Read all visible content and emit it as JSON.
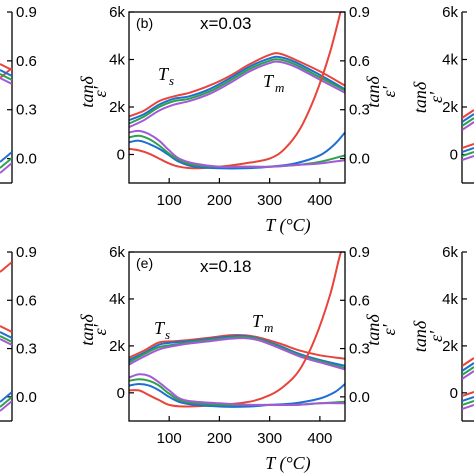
{
  "chart_data": [
    {
      "type": "line",
      "panel_label": "(b)",
      "annotation": "x=0.03",
      "xlabel": "T (°C)",
      "y_left_label": "ε'",
      "y_right_label": "tanδ",
      "xlim": [
        20,
        450
      ],
      "ylim_left": [
        -1200,
        6000
      ],
      "ylim_right": [
        -0.15,
        0.9
      ],
      "xticks": [
        "100",
        "200",
        "300",
        "400"
      ],
      "yticks_left": [
        "0",
        "2k",
        "4k",
        "6k"
      ],
      "yticks_right": [
        "0.0",
        "0.3",
        "0.6",
        "0.9"
      ],
      "feature_labels": [
        {
          "base": "T",
          "sub": "s"
        },
        {
          "base": "T",
          "sub": "m"
        }
      ],
      "colors": [
        "#e8443a",
        "#1f6fd1",
        "#2ca24a",
        "#a35ad6"
      ],
      "permittivity_series": [
        {
          "points": [
            [
              20,
              1600
            ],
            [
              50,
              1850
            ],
            [
              80,
              2250
            ],
            [
              110,
              2450
            ],
            [
              140,
              2600
            ],
            [
              180,
              2900
            ],
            [
              220,
              3300
            ],
            [
              260,
              3800
            ],
            [
              300,
              4200
            ],
            [
              320,
              4250
            ],
            [
              350,
              4000
            ],
            [
              400,
              3500
            ],
            [
              450,
              2900
            ]
          ]
        },
        {
          "points": [
            [
              20,
              1450
            ],
            [
              50,
              1700
            ],
            [
              80,
              2100
            ],
            [
              110,
              2350
            ],
            [
              140,
              2450
            ],
            [
              180,
              2750
            ],
            [
              220,
              3200
            ],
            [
              260,
              3700
            ],
            [
              300,
              4050
            ],
            [
              320,
              4100
            ],
            [
              350,
              3900
            ],
            [
              400,
              3350
            ],
            [
              450,
              2750
            ]
          ]
        },
        {
          "points": [
            [
              20,
              1300
            ],
            [
              50,
              1600
            ],
            [
              80,
              2000
            ],
            [
              110,
              2250
            ],
            [
              140,
              2350
            ],
            [
              180,
              2650
            ],
            [
              220,
              3100
            ],
            [
              260,
              3600
            ],
            [
              300,
              3950
            ],
            [
              320,
              4000
            ],
            [
              350,
              3800
            ],
            [
              400,
              3250
            ],
            [
              450,
              2700
            ]
          ]
        },
        {
          "points": [
            [
              20,
              1150
            ],
            [
              50,
              1450
            ],
            [
              80,
              1850
            ],
            [
              110,
              2100
            ],
            [
              140,
              2250
            ],
            [
              180,
              2550
            ],
            [
              220,
              3000
            ],
            [
              260,
              3500
            ],
            [
              300,
              3850
            ],
            [
              320,
              3900
            ],
            [
              350,
              3700
            ],
            [
              400,
              3150
            ],
            [
              450,
              2600
            ]
          ]
        }
      ],
      "tan_series": [
        {
          "points": [
            [
              20,
              0.06
            ],
            [
              40,
              0.05
            ],
            [
              60,
              0.03
            ],
            [
              80,
              0.0
            ],
            [
              100,
              -0.03
            ],
            [
              120,
              -0.05
            ],
            [
              150,
              -0.06
            ],
            [
              200,
              -0.05
            ],
            [
              250,
              -0.03
            ],
            [
              300,
              0.0
            ],
            [
              330,
              0.06
            ],
            [
              360,
              0.18
            ],
            [
              390,
              0.38
            ],
            [
              420,
              0.65
            ],
            [
              445,
              0.95
            ]
          ]
        },
        {
          "points": [
            [
              20,
              0.1
            ],
            [
              40,
              0.11
            ],
            [
              60,
              0.09
            ],
            [
              80,
              0.06
            ],
            [
              100,
              0.02
            ],
            [
              120,
              -0.02
            ],
            [
              150,
              -0.05
            ],
            [
              200,
              -0.06
            ],
            [
              250,
              -0.06
            ],
            [
              300,
              -0.05
            ],
            [
              350,
              -0.03
            ],
            [
              400,
              0.02
            ],
            [
              430,
              0.09
            ],
            [
              450,
              0.16
            ]
          ]
        },
        {
          "points": [
            [
              20,
              0.13
            ],
            [
              40,
              0.14
            ],
            [
              60,
              0.12
            ],
            [
              80,
              0.08
            ],
            [
              100,
              0.03
            ],
            [
              120,
              -0.01
            ],
            [
              150,
              -0.04
            ],
            [
              200,
              -0.05
            ],
            [
              250,
              -0.05
            ],
            [
              300,
              -0.05
            ],
            [
              350,
              -0.04
            ],
            [
              400,
              -0.02
            ],
            [
              450,
              0.02
            ]
          ]
        },
        {
          "points": [
            [
              20,
              0.16
            ],
            [
              40,
              0.17
            ],
            [
              60,
              0.15
            ],
            [
              80,
              0.11
            ],
            [
              100,
              0.05
            ],
            [
              120,
              0.0
            ],
            [
              150,
              -0.03
            ],
            [
              200,
              -0.05
            ],
            [
              250,
              -0.05
            ],
            [
              300,
              -0.05
            ],
            [
              350,
              -0.04
            ],
            [
              400,
              -0.03
            ],
            [
              450,
              -0.01
            ]
          ]
        }
      ]
    },
    {
      "type": "line",
      "panel_label": "(e)",
      "annotation": "x=0.18",
      "xlabel": "T (°C)",
      "y_left_label": "ε'",
      "y_right_label": "tanδ",
      "xlim": [
        20,
        450
      ],
      "ylim_left": [
        -1200,
        6000
      ],
      "ylim_right": [
        -0.15,
        0.9
      ],
      "xticks": [
        "100",
        "200",
        "300",
        "400"
      ],
      "yticks_left": [
        "0",
        "2k",
        "4k",
        "6k"
      ],
      "yticks_right": [
        "0.0",
        "0.3",
        "0.6",
        "0.9"
      ],
      "feature_labels": [
        {
          "base": "T",
          "sub": "s"
        },
        {
          "base": "T",
          "sub": "m"
        }
      ],
      "colors": [
        "#e8443a",
        "#1f6fd1",
        "#2ca24a",
        "#a35ad6"
      ],
      "permittivity_series": [
        {
          "points": [
            [
              20,
              1500
            ],
            [
              50,
              1800
            ],
            [
              80,
              2150
            ],
            [
              110,
              2200
            ],
            [
              140,
              2250
            ],
            [
              180,
              2350
            ],
            [
              220,
              2450
            ],
            [
              250,
              2450
            ],
            [
              280,
              2350
            ],
            [
              320,
              2100
            ],
            [
              360,
              1800
            ],
            [
              400,
              1600
            ],
            [
              450,
              1450
            ]
          ]
        },
        {
          "points": [
            [
              20,
              1400
            ],
            [
              50,
              1700
            ],
            [
              80,
              2050
            ],
            [
              110,
              2150
            ],
            [
              140,
              2200
            ],
            [
              180,
              2300
            ],
            [
              220,
              2400
            ],
            [
              250,
              2420
            ],
            [
              280,
              2300
            ],
            [
              320,
              2000
            ],
            [
              360,
              1650
            ],
            [
              400,
              1400
            ],
            [
              450,
              1150
            ]
          ]
        },
        {
          "points": [
            [
              20,
              1300
            ],
            [
              50,
              1650
            ],
            [
              80,
              1950
            ],
            [
              110,
              2050
            ],
            [
              140,
              2150
            ],
            [
              180,
              2250
            ],
            [
              220,
              2350
            ],
            [
              250,
              2380
            ],
            [
              280,
              2280
            ],
            [
              320,
              1950
            ],
            [
              360,
              1600
            ],
            [
              400,
              1350
            ],
            [
              450,
              1050
            ]
          ]
        },
        {
          "points": [
            [
              20,
              1200
            ],
            [
              50,
              1550
            ],
            [
              80,
              1850
            ],
            [
              110,
              2000
            ],
            [
              140,
              2100
            ],
            [
              180,
              2200
            ],
            [
              220,
              2300
            ],
            [
              250,
              2330
            ],
            [
              280,
              2230
            ],
            [
              320,
              1900
            ],
            [
              360,
              1550
            ],
            [
              400,
              1300
            ],
            [
              450,
              1000
            ]
          ]
        }
      ],
      "tan_series": [
        {
          "points": [
            [
              20,
              0.04
            ],
            [
              40,
              0.04
            ],
            [
              60,
              0.01
            ],
            [
              80,
              -0.02
            ],
            [
              100,
              -0.05
            ],
            [
              130,
              -0.06
            ],
            [
              200,
              -0.05
            ],
            [
              260,
              -0.03
            ],
            [
              300,
              0.01
            ],
            [
              330,
              0.07
            ],
            [
              360,
              0.17
            ],
            [
              390,
              0.36
            ],
            [
              420,
              0.63
            ],
            [
              440,
              0.88
            ],
            [
              450,
              0.95
            ]
          ]
        },
        {
          "points": [
            [
              20,
              0.07
            ],
            [
              40,
              0.08
            ],
            [
              60,
              0.07
            ],
            [
              80,
              0.04
            ],
            [
              100,
              0.0
            ],
            [
              130,
              -0.04
            ],
            [
              200,
              -0.06
            ],
            [
              260,
              -0.06
            ],
            [
              300,
              -0.05
            ],
            [
              350,
              -0.04
            ],
            [
              400,
              -0.01
            ],
            [
              430,
              0.03
            ],
            [
              450,
              0.08
            ]
          ]
        },
        {
          "points": [
            [
              20,
              0.1
            ],
            [
              40,
              0.11
            ],
            [
              60,
              0.1
            ],
            [
              80,
              0.07
            ],
            [
              100,
              0.02
            ],
            [
              130,
              -0.03
            ],
            [
              200,
              -0.05
            ],
            [
              260,
              -0.05
            ],
            [
              300,
              -0.05
            ],
            [
              350,
              -0.05
            ],
            [
              400,
              -0.04
            ],
            [
              450,
              -0.03
            ]
          ]
        },
        {
          "points": [
            [
              20,
              0.12
            ],
            [
              40,
              0.14
            ],
            [
              60,
              0.13
            ],
            [
              80,
              0.09
            ],
            [
              100,
              0.04
            ],
            [
              130,
              -0.02
            ],
            [
              200,
              -0.04
            ],
            [
              260,
              -0.05
            ],
            [
              300,
              -0.05
            ],
            [
              350,
              -0.05
            ],
            [
              400,
              -0.04
            ],
            [
              450,
              -0.04
            ]
          ]
        }
      ]
    }
  ],
  "edge_panels": {
    "left_tan_ticks": [
      "0.0",
      "0.3",
      "0.6",
      "0.9"
    ],
    "right_eps_ticks": [
      "0",
      "2k",
      "4k",
      "6k"
    ]
  }
}
